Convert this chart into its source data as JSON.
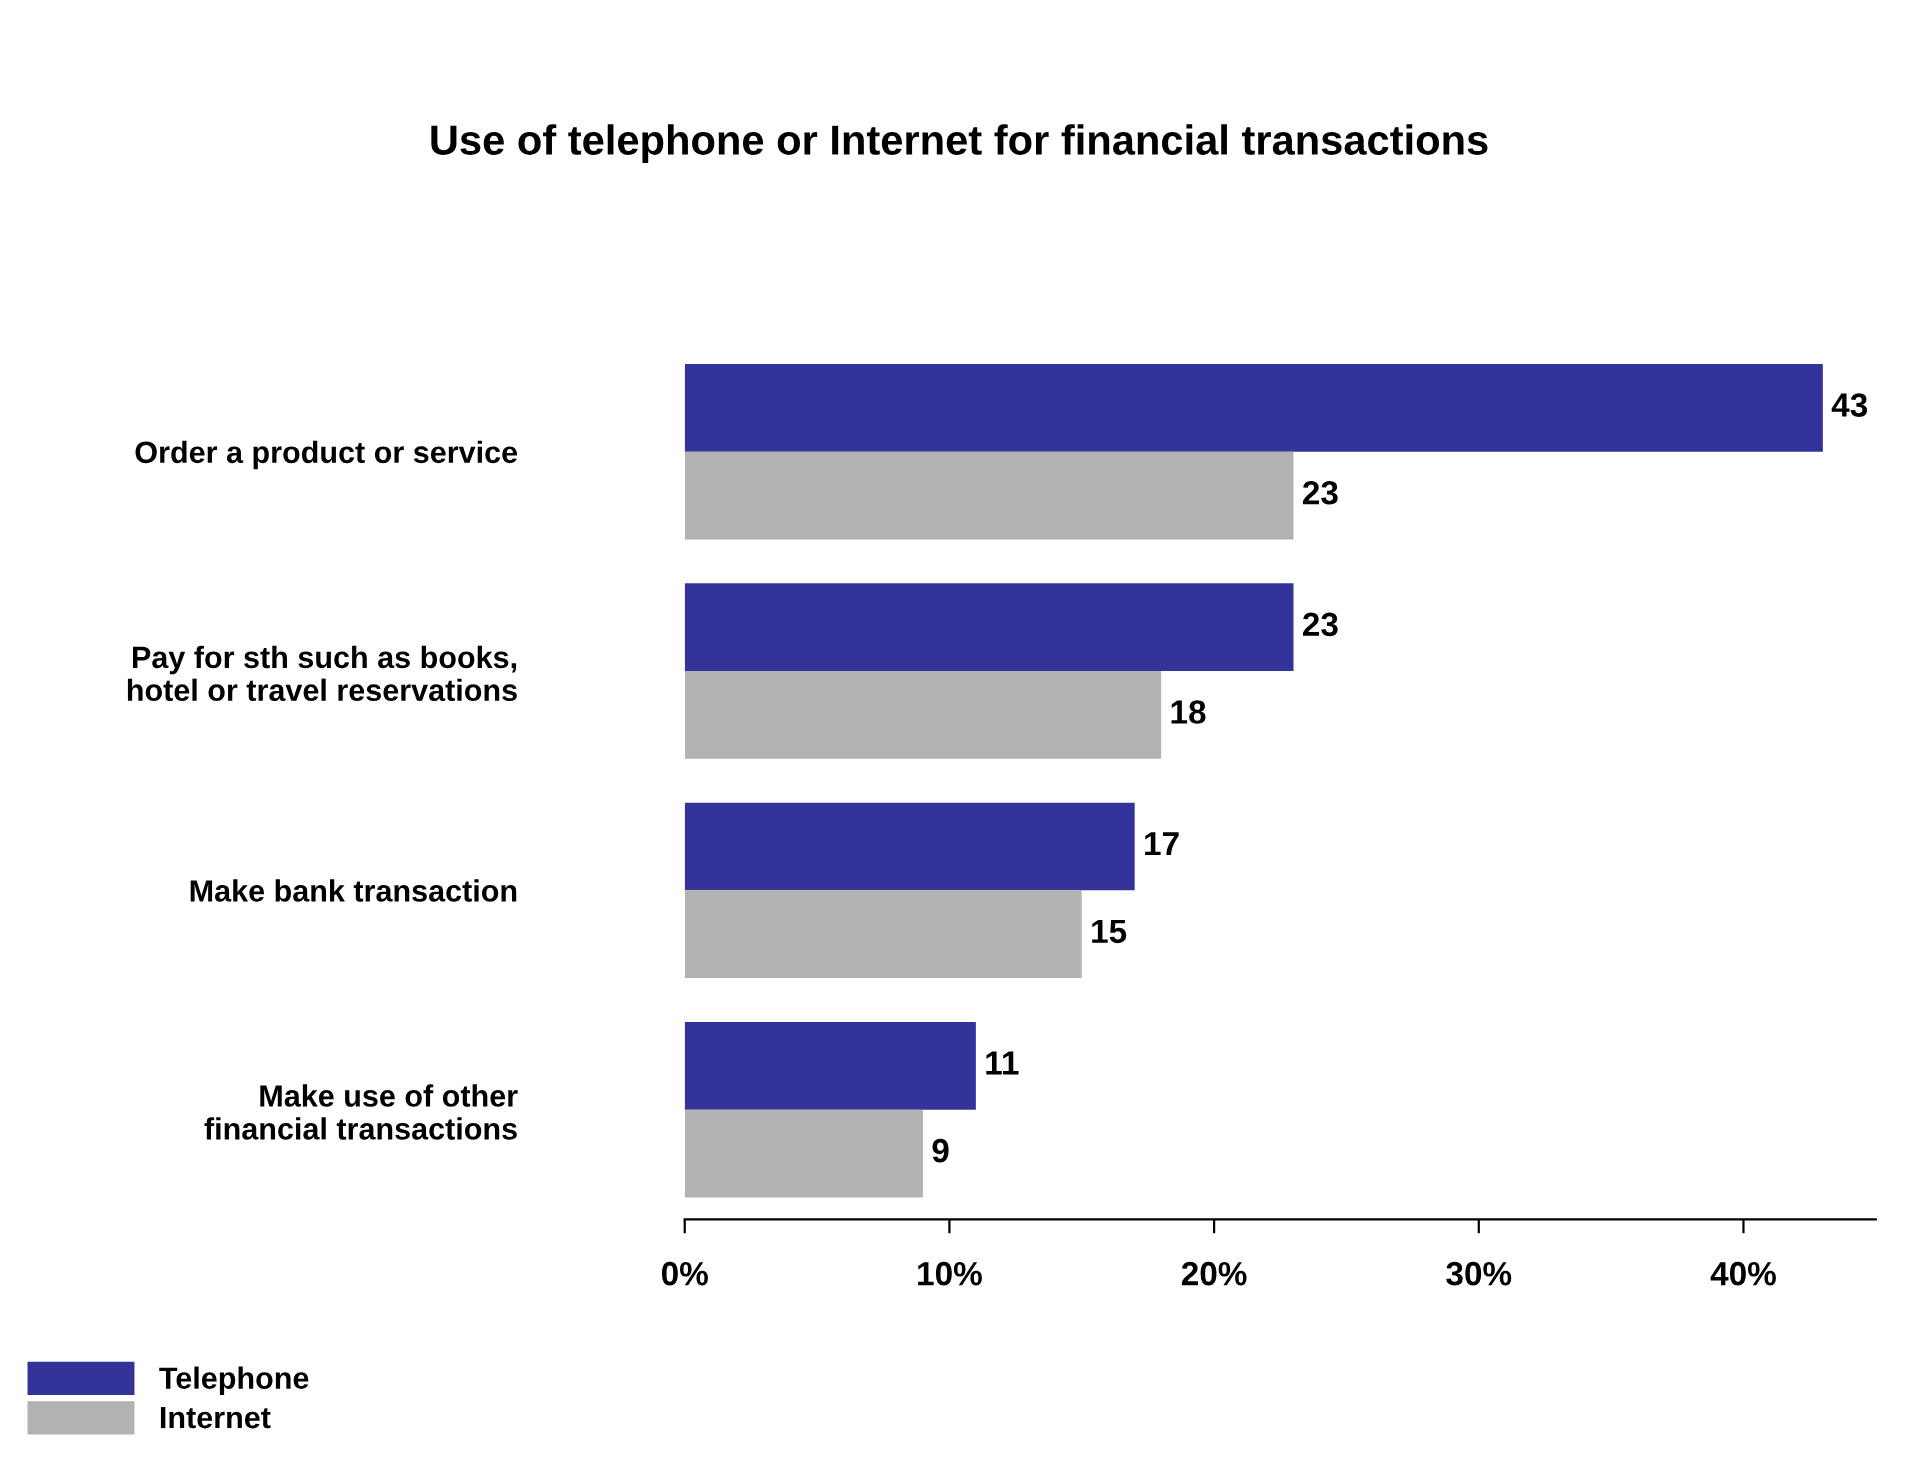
{
  "chart_data": {
    "type": "bar",
    "orientation": "horizontal",
    "title": "Use of telephone or Internet for financial transactions",
    "categories": [
      "Order a product or service",
      "Pay for sth such as books,\nhotel or travel reservations",
      "Make bank transaction",
      "Make use of other\nfinancial transactions"
    ],
    "series": [
      {
        "name": "Telephone",
        "color": "#333399",
        "values": [
          43,
          23,
          17,
          11
        ]
      },
      {
        "name": "Internet",
        "color": "#b2b2b2",
        "values": [
          23,
          18,
          15,
          9
        ]
      }
    ],
    "xlim": [
      0,
      45
    ],
    "xticks": [
      {
        "value": 0,
        "label": "0%"
      },
      {
        "value": 10,
        "label": "10%"
      },
      {
        "value": 20,
        "label": "20%"
      },
      {
        "value": 30,
        "label": "30%"
      },
      {
        "value": 40,
        "label": "40%"
      }
    ],
    "data_labels": true,
    "grid": false,
    "legend": "bottom left"
  }
}
